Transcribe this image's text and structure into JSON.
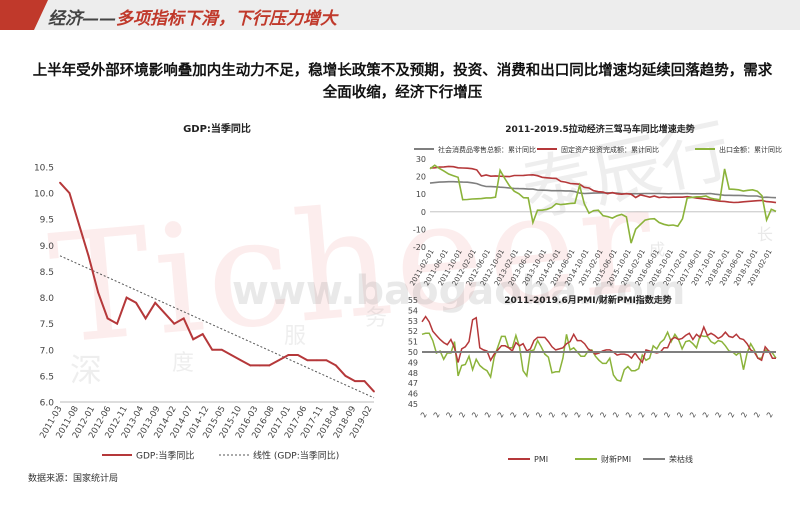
{
  "header": {
    "section": "经济",
    "separator": "——",
    "title": "多项指标下滑，下行压力增大"
  },
  "headline": "上半年受外部环境影响叠加内生动力不足，稳增长政策不及预期，投资、消费和出口同比增速均延续回落趋势，需求全面收缩，经济下行增压",
  "source": "数据来源：国家统计局",
  "watermark": {
    "brand": "Ticheer",
    "site": "www.baogaoba.com",
    "cn_vertical": "泰辰行",
    "cn_chars": [
      "深",
      "度",
      "服",
      "务",
      "成",
      "长"
    ]
  },
  "colors": {
    "red": "#b5383a",
    "green": "#8bb33a",
    "gray": "#7f7f7f",
    "brand_red": "#c0392b"
  },
  "chart_data": [
    {
      "type": "line",
      "title": "GDP:当季同比",
      "x": [
        "2011-03",
        "2011-06",
        "2011-09",
        "2011-12",
        "2012-03",
        "2012-06",
        "2012-09",
        "2012-12",
        "2013-03",
        "2013-06",
        "2013-09",
        "2013-12",
        "2014-03",
        "2014-06",
        "2014-09",
        "2014-12",
        "2015-03",
        "2015-06",
        "2015-09",
        "2015-12",
        "2016-03",
        "2016-06",
        "2016-09",
        "2016-12",
        "2017-03",
        "2017-06",
        "2017-09",
        "2017-12",
        "2018-03",
        "2018-06",
        "2018-09",
        "2018-12",
        "2019-03",
        "2019-06"
      ],
      "xticks": [
        "2011-03",
        "2011-08",
        "2012-01",
        "2012-06",
        "2012-11",
        "2013-04",
        "2013-09",
        "2014-02",
        "2014-07",
        "2014-12",
        "2015-05",
        "2015-10",
        "2016-03",
        "2016-08",
        "2017-01",
        "2017-06",
        "2017-11",
        "2018-04",
        "2018-09",
        "2019-02"
      ],
      "ylim": [
        6.0,
        10.5
      ],
      "yticks": [
        "6.0",
        "6.5",
        "7.0",
        "7.5",
        "8.0",
        "8.5",
        "9.0",
        "9.5",
        "10.0",
        "10.5"
      ],
      "series": [
        {
          "name": "GDP:当季同比",
          "values": [
            10.2,
            10.0,
            9.4,
            8.8,
            8.1,
            7.6,
            7.5,
            8.0,
            7.9,
            7.6,
            7.9,
            7.7,
            7.5,
            7.6,
            7.2,
            7.3,
            7.0,
            7.0,
            6.9,
            6.8,
            6.7,
            6.7,
            6.7,
            6.8,
            6.9,
            6.9,
            6.8,
            6.8,
            6.8,
            6.7,
            6.5,
            6.4,
            6.4,
            6.2
          ]
        },
        {
          "name": "线性 (GDP:当季同比)",
          "trend": [
            8.8,
            6.08
          ]
        }
      ],
      "legend": [
        "GDP:当季同比",
        "线性 (GDP:当季同比)"
      ],
      "legend_position": "bottom"
    },
    {
      "type": "line",
      "title": "2011-2019.5拉动经济三驾马车同比增速走势",
      "xticks": [
        "2011-02-01",
        "2011-06-01",
        "2011-10-01",
        "2012-02-01",
        "2012-06-01",
        "2012-10-01",
        "2013-02-01",
        "2013-06-01",
        "2013-10-01",
        "2014-02-01",
        "2014-06-01",
        "2014-10-01",
        "2015-02-01",
        "2015-06-01",
        "2015-10-01",
        "2016-02-01",
        "2016-06-01",
        "2016-10-01",
        "2017-02-01",
        "2017-06-01",
        "2017-10-01",
        "2018-02-01",
        "2018-06-01",
        "2018-10-01",
        "2019-02-01"
      ],
      "ylim": [
        -20,
        30
      ],
      "yticks": [
        "-20",
        "-10",
        "0",
        "10",
        "20",
        "30"
      ],
      "legend": [
        "社会消费品零售总额：累计同比",
        "固定资产投资完成额：累计同比",
        "出口金额：累计同比"
      ],
      "legend_position": "top",
      "series": [
        {
          "name": "社会消费品零售总额：累计同比",
          "values": [
            16.3,
            16.6,
            16.9,
            17.0,
            17.1,
            17.1,
            17.0,
            16.9,
            16.8,
            16.5,
            16.0,
            15.0,
            14.4,
            14.3,
            14.2,
            14.0,
            13.8,
            13.5,
            13.3,
            13.2,
            13.1,
            12.9,
            12.9,
            12.4,
            12.3,
            12.2,
            12.0,
            12.0,
            12.0,
            11.9,
            11.9,
            11.5,
            10.6,
            10.4,
            10.5,
            10.6,
            10.7,
            10.7,
            10.8,
            10.7,
            10.7,
            10.3,
            10.3,
            10.2,
            10.3,
            10.3,
            10.4,
            10.4,
            10.4,
            10.4,
            10.3,
            10.2,
            10.3,
            10.3,
            10.3,
            10.4,
            10.2,
            10.2,
            10.2,
            10.3,
            10.4,
            10.0,
            9.7,
            9.4,
            9.4,
            9.3,
            9.3,
            9.2,
            9.0,
            9.0,
            9.0,
            8.2,
            8.3,
            8.1,
            8.0
          ]
        },
        {
          "name": "固定资产投资完成额：累计同比",
          "values": [
            24.9,
            25.0,
            25.4,
            25.5,
            25.8,
            25.6,
            25.0,
            24.9,
            24.8,
            24.5,
            23.8,
            20.3,
            20.9,
            20.2,
            20.4,
            20.2,
            20.1,
            20.0,
            20.6,
            20.6,
            20.7,
            20.9,
            21.0,
            20.5,
            19.6,
            19.3,
            19.1,
            19.0,
            17.3,
            16.9,
            16.1,
            15.9,
            15.7,
            13.9,
            13.5,
            12.0,
            11.4,
            11.2,
            10.3,
            10.9,
            10.2,
            10.0,
            10.3,
            10.0,
            8.1,
            9.6,
            9.0,
            8.3,
            9.0,
            8.1,
            8.4,
            8.2,
            8.3,
            8.3,
            8.3,
            8.6,
            8.3,
            7.8,
            7.5,
            7.2,
            6.9,
            6.4,
            6.0,
            5.9,
            5.5,
            5.3,
            5.4,
            5.7,
            5.9,
            6.1,
            6.3,
            6.5,
            5.8,
            5.6,
            5.2
          ]
        },
        {
          "name": "出口金额：累计同比",
          "values": [
            24.4,
            26.5,
            24.6,
            23.1,
            21.5,
            20.5,
            19.6,
            6.9,
            7.0,
            7.3,
            7.4,
            7.5,
            7.9,
            7.9,
            8.3,
            23.6,
            18.9,
            14.7,
            11.7,
            10.3,
            8.0,
            7.9,
            -6.1,
            0.9,
            0.9,
            1.4,
            2.4,
            4.6,
            4.1,
            4.4,
            4.8,
            4.9,
            15.0,
            4.6,
            -0.8,
            0.7,
            0.9,
            -2.2,
            -2.7,
            -3.6,
            -2.3,
            -1.5,
            -2.9,
            -17.8,
            -9.9,
            -7.3,
            -4.7,
            -4.1,
            -3.9,
            -6.1,
            -7.1,
            -7.7,
            -7.5,
            -8.2,
            -4.0,
            7.9,
            8.2,
            8.5,
            8.5,
            9.0,
            7.8,
            7.2,
            6.8,
            24.4,
            12.9,
            12.8,
            12.5,
            11.8,
            12.2,
            12.5,
            11.7,
            9.1,
            -4.6,
            1.4,
            0.2
          ]
        }
      ]
    },
    {
      "type": "line",
      "title": "2011-2019.6月PMI/财新PMI指数走势",
      "ylim": [
        45,
        55
      ],
      "yticks": [
        "45",
        "46",
        "47",
        "48",
        "49",
        "50",
        "51",
        "52",
        "53",
        "54",
        "55"
      ],
      "xtick_label": "2",
      "legend": [
        "PMI",
        "财新PMI",
        "荣枯线"
      ],
      "legend_position": "bottom",
      "series": [
        {
          "name": "PMI",
          "values": [
            52.9,
            53.4,
            52.9,
            52.0,
            51.6,
            51.2,
            50.9,
            50.7,
            51.2,
            50.4,
            49.0,
            50.3,
            50.5,
            51.0,
            53.1,
            53.3,
            50.4,
            50.2,
            50.1,
            49.2,
            49.8,
            50.2,
            50.6,
            50.6,
            50.4,
            50.1,
            50.9,
            50.6,
            50.8,
            50.1,
            50.3,
            51.1,
            51.4,
            51.4,
            51.4,
            51.0,
            50.5,
            50.2,
            50.3,
            50.4,
            50.8,
            51.0,
            51.7,
            51.1,
            51.1,
            50.8,
            50.3,
            50.1,
            49.8,
            49.9,
            50.1,
            50.2,
            50.2,
            50.0,
            49.7,
            49.8,
            49.8,
            49.7,
            49.4,
            49.9,
            49.4,
            49.0,
            50.2,
            50.1,
            50.0,
            49.9,
            50.0,
            50.4,
            50.4,
            51.2,
            51.4,
            51.2,
            51.3,
            51.6,
            51.8,
            51.2,
            51.7,
            51.4,
            52.4,
            51.6,
            51.8,
            51.6,
            51.3,
            51.5,
            51.9,
            51.5,
            51.4,
            51.7,
            51.3,
            51.2,
            50.8,
            50.2,
            50.0,
            49.4,
            49.2,
            50.5,
            50.1,
            49.4,
            49.4
          ]
        },
        {
          "name": "财新PMI",
          "values": [
            51.7,
            51.8,
            51.8,
            51.1,
            49.9,
            50.1,
            49.3,
            49.9,
            49.9,
            51.0,
            47.7,
            48.7,
            48.8,
            49.6,
            48.3,
            49.3,
            48.7,
            48.4,
            48.2,
            47.6,
            49.5,
            50.5,
            51.5,
            51.5,
            50.4,
            50.4,
            51.6,
            50.5,
            48.2,
            47.7,
            50.1,
            50.2,
            51.1,
            50.5,
            49.8,
            49.5,
            48.0,
            48.1,
            48.1,
            49.4,
            51.7,
            50.2,
            50.4,
            50.0,
            49.6,
            49.6,
            50.1,
            50.2,
            49.6,
            49.2,
            48.9,
            48.9,
            49.4,
            47.8,
            47.3,
            47.2,
            48.3,
            48.6,
            48.2,
            48.2,
            48.4,
            49.7,
            49.2,
            49.4,
            50.6,
            50.3,
            50.9,
            51.2,
            51.9,
            51.0,
            51.7,
            51.2,
            50.3,
            51.0,
            51.1,
            50.8,
            50.4,
            51.6,
            51.5,
            51.5,
            51.0,
            50.8,
            51.1,
            51.0,
            50.6,
            50.1,
            50.0,
            49.7,
            50.0,
            48.3,
            49.9,
            50.8,
            50.2,
            49.4,
            49.4,
            50.2,
            50.1,
            49.9,
            49.4
          ]
        },
        {
          "name": "荣枯线",
          "value": 50
        }
      ]
    }
  ]
}
